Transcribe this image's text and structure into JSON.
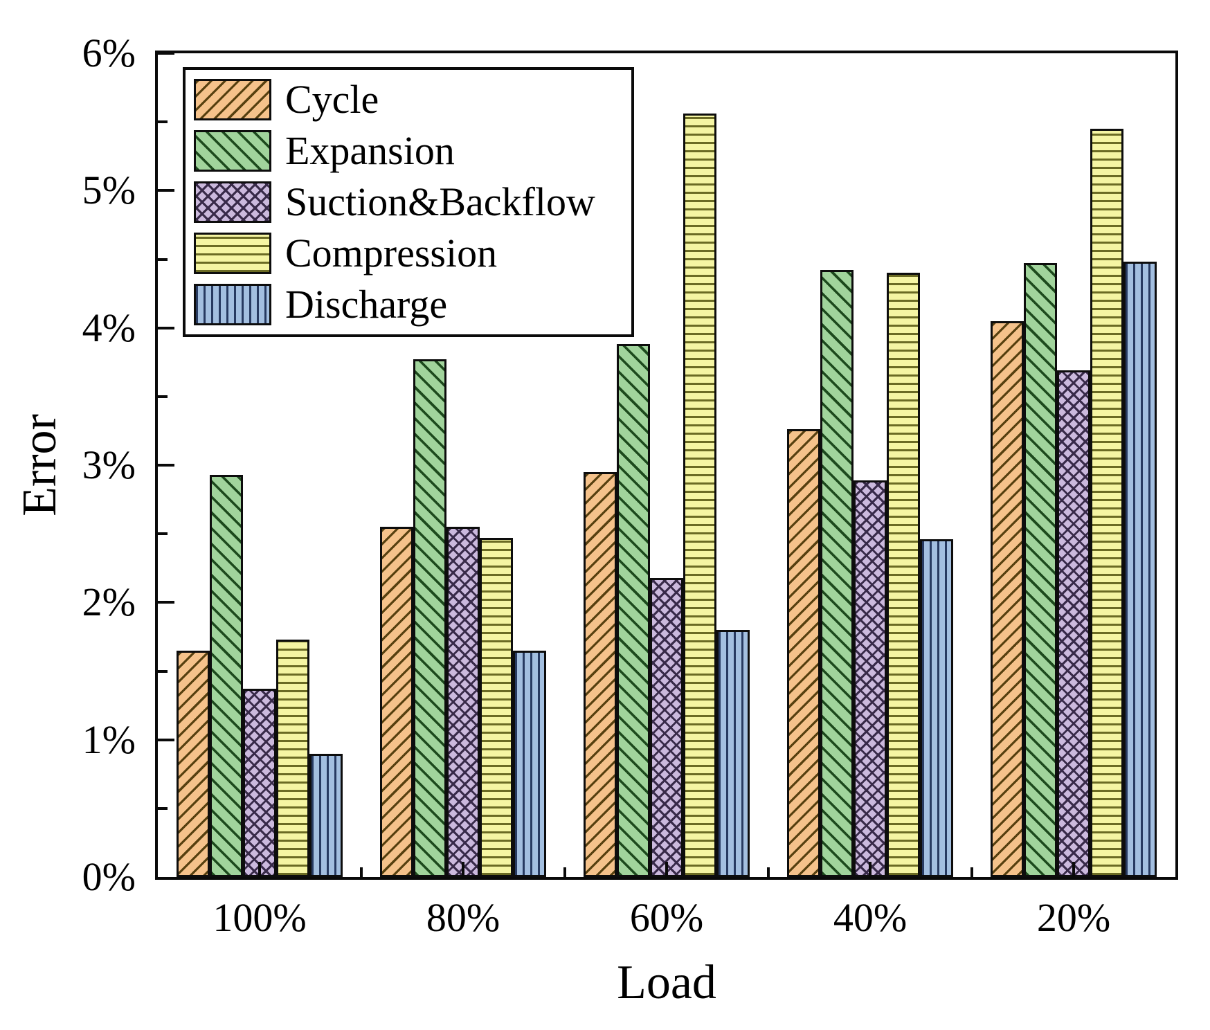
{
  "figure": {
    "background": "#ffffff"
  },
  "chart_data": {
    "type": "bar",
    "title": "",
    "xlabel": "Load",
    "ylabel": "Error",
    "categories": [
      "100%",
      "80%",
      "60%",
      "40%",
      "20%"
    ],
    "series": [
      {
        "name": "Cycle",
        "values": [
          1.65,
          2.55,
          2.95,
          3.26,
          4.05
        ],
        "fill": "#F5C28B",
        "hatch": "/",
        "hatch_color": "#57400f"
      },
      {
        "name": "Expansion",
        "values": [
          2.93,
          3.77,
          3.88,
          4.42,
          4.47
        ],
        "fill": "#A1D49C",
        "hatch": "\\",
        "hatch_color": "#1d4a1d"
      },
      {
        "name": "Suction&Backflow",
        "values": [
          1.37,
          2.55,
          2.18,
          2.89,
          3.69
        ],
        "fill": "#CBB9DD",
        "hatch": "x",
        "hatch_color": "#382a49"
      },
      {
        "name": "Compression",
        "values": [
          1.73,
          2.47,
          5.56,
          4.4,
          5.45
        ],
        "fill": "#F5F5A3",
        "hatch": "-",
        "hatch_color": "#6b6b24"
      },
      {
        "name": "Discharge",
        "values": [
          0.9,
          1.65,
          1.8,
          2.46,
          4.48
        ],
        "fill": "#A3BFE0",
        "hatch": "|",
        "hatch_color": "#273a61"
      }
    ],
    "unit": "%",
    "ylim": [
      0,
      6
    ],
    "ytick_labels": [
      "0%",
      "1%",
      "2%",
      "3%",
      "4%",
      "5%",
      "6%"
    ],
    "ytick_step": 1,
    "minor_tick_step": 0.5,
    "grid": false,
    "legend_position": "upper-left",
    "bar_edge_color": "#0d0d0d"
  }
}
